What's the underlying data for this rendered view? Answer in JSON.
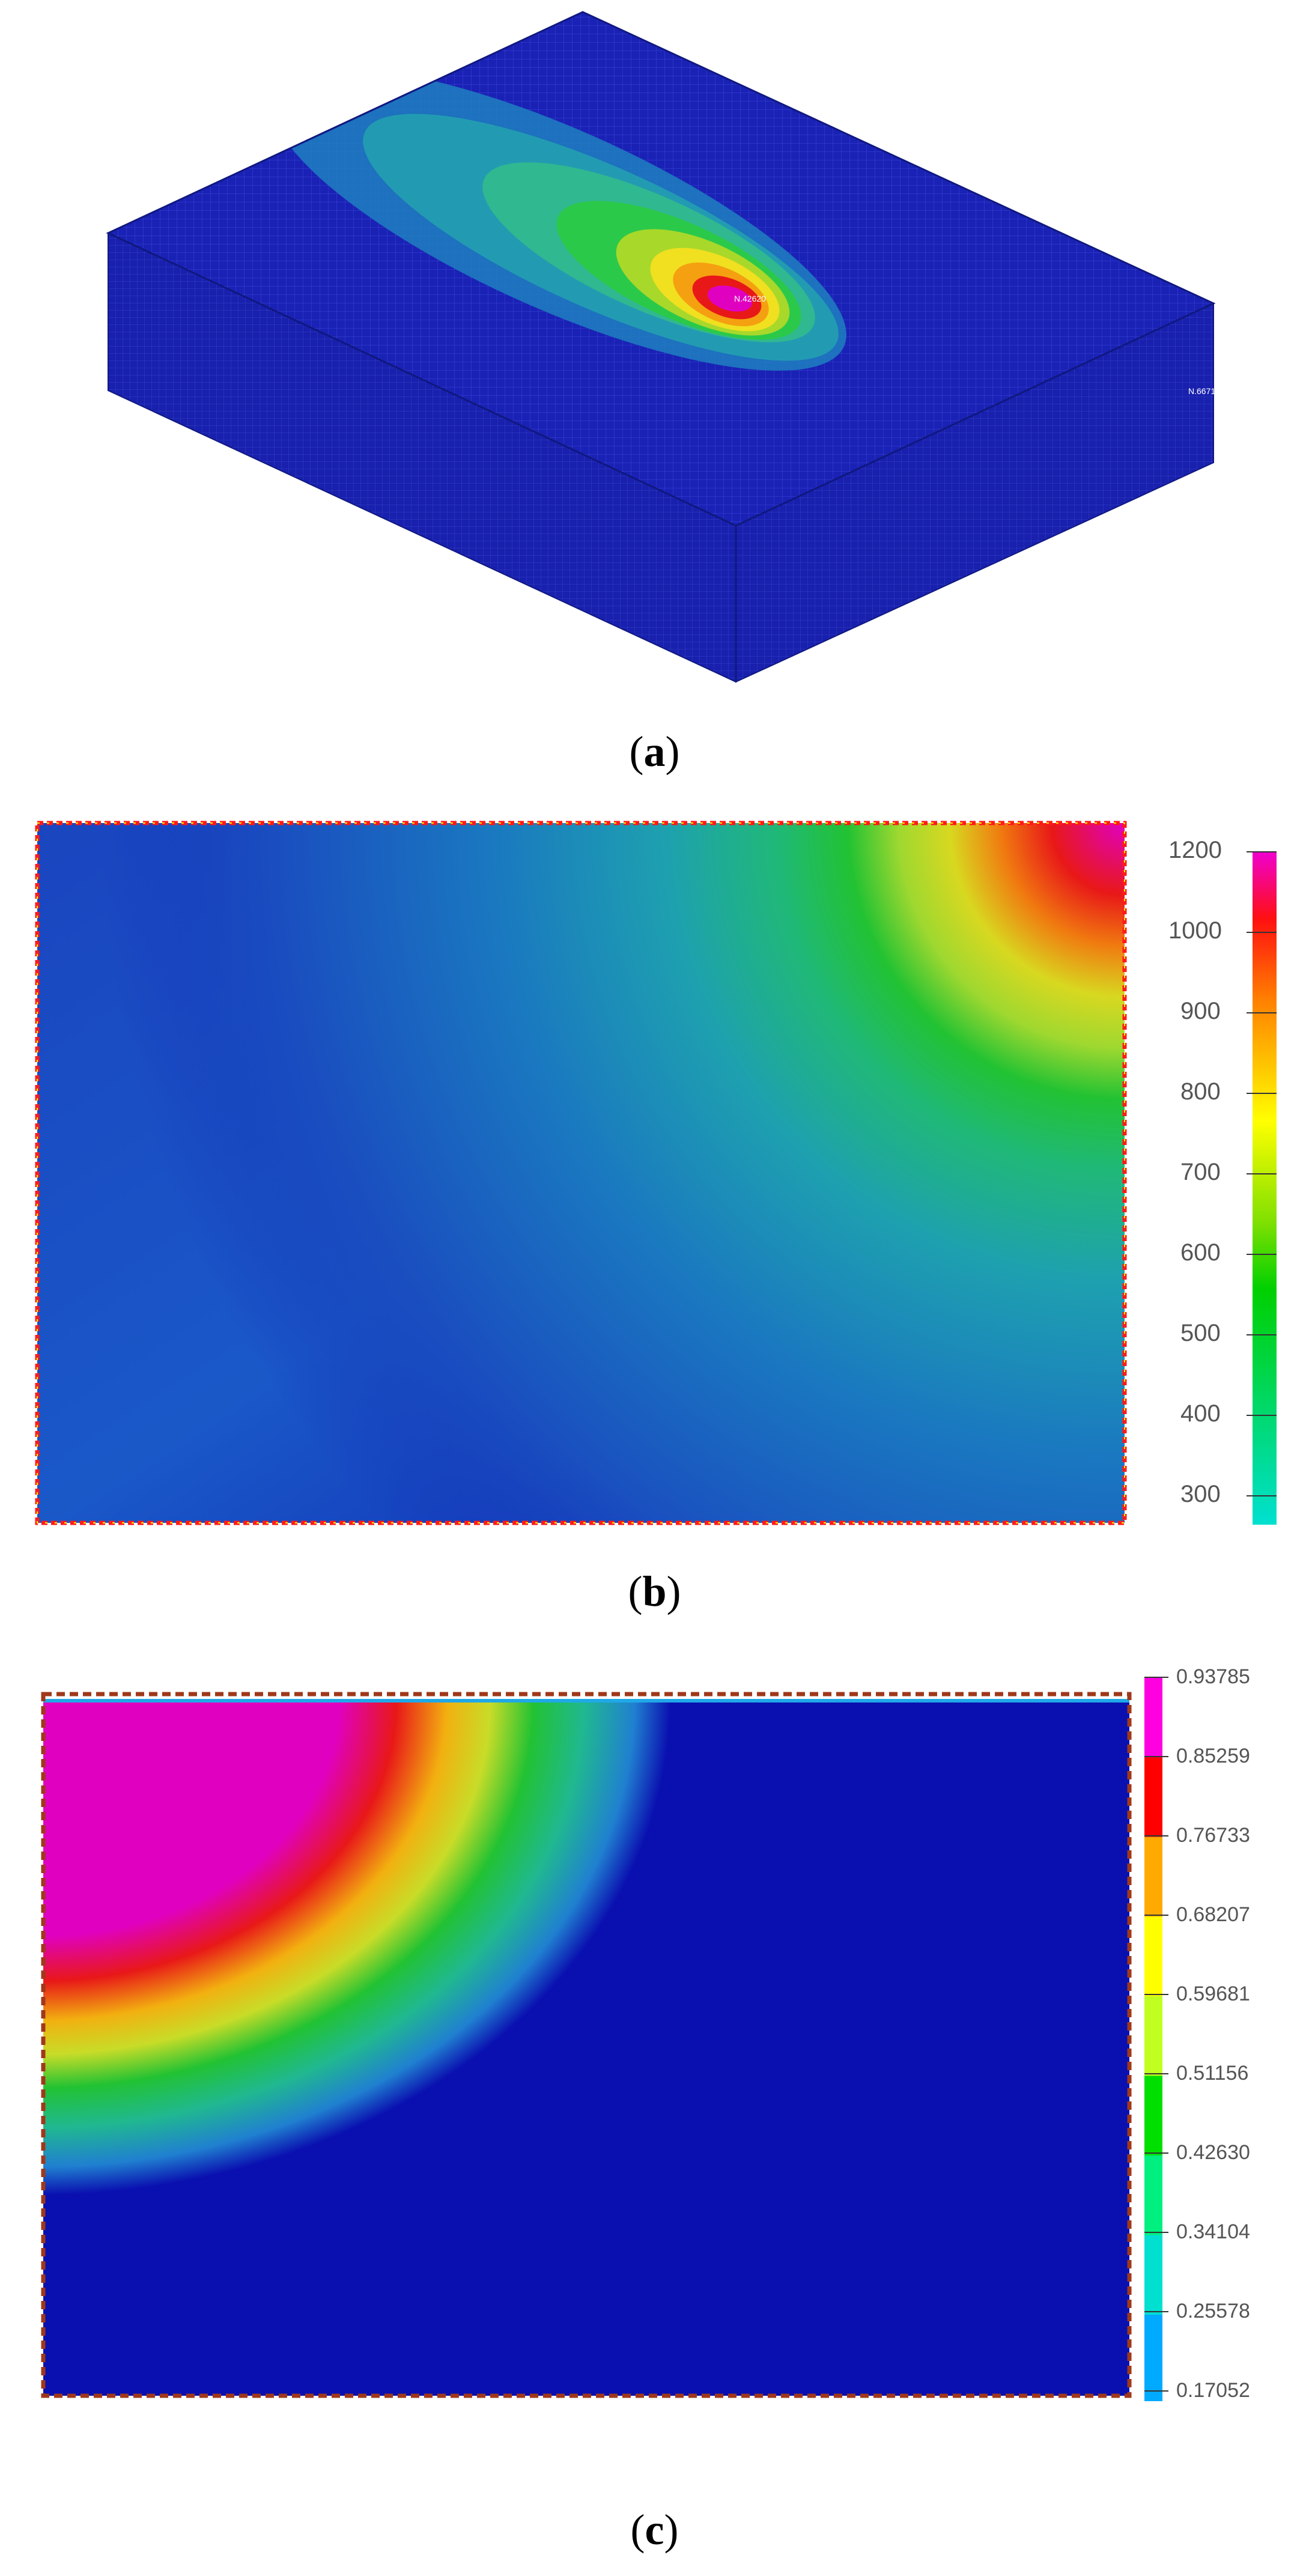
{
  "panel_a": {
    "caption_label": "a",
    "max_label": "N.42620",
    "side_label": "N.66713"
  },
  "panel_b": {
    "caption_label": "b",
    "colorbar_ticks": [
      "1200",
      "1000",
      "900",
      "800",
      "700",
      "600",
      "500",
      "400",
      "300"
    ]
  },
  "panel_c": {
    "caption_label": "c",
    "colorbar_ticks": [
      "0.93785",
      "0.85259",
      "0.76733",
      "0.68207",
      "0.59681",
      "0.51156",
      "0.42630",
      "0.34104",
      "0.25578",
      "0.17052"
    ]
  },
  "colors": {
    "background_blue": "#1822b8",
    "cold_blue": "#0a10b0",
    "border_red": "#ff1a1a",
    "border_brown": "#a0381a",
    "hot_magenta": "#e000c0"
  }
}
